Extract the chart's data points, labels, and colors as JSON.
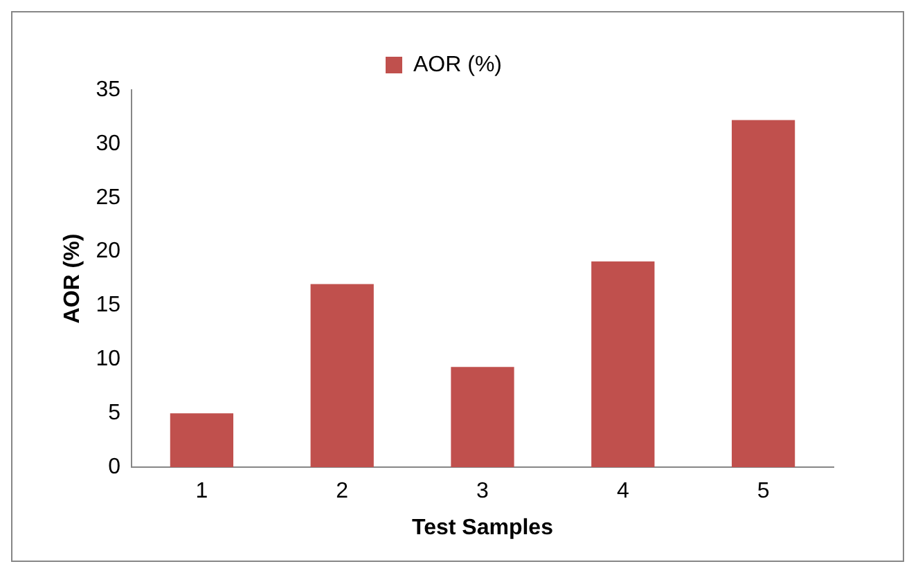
{
  "chart_data": {
    "type": "bar",
    "xlabel": "Test Samples",
    "ylabel": "AOR (%)",
    "categories": [
      "1",
      "2",
      "3",
      "4",
      "5"
    ],
    "series": [
      {
        "name": "AOR (%)",
        "color": "#c0504d",
        "values": [
          5,
          17,
          9.3,
          19.1,
          32.2
        ]
      }
    ],
    "ylim": [
      0,
      35
    ],
    "yticks": [
      0,
      5,
      10,
      15,
      20,
      25,
      30,
      35
    ],
    "grid": false,
    "legend": "top"
  }
}
